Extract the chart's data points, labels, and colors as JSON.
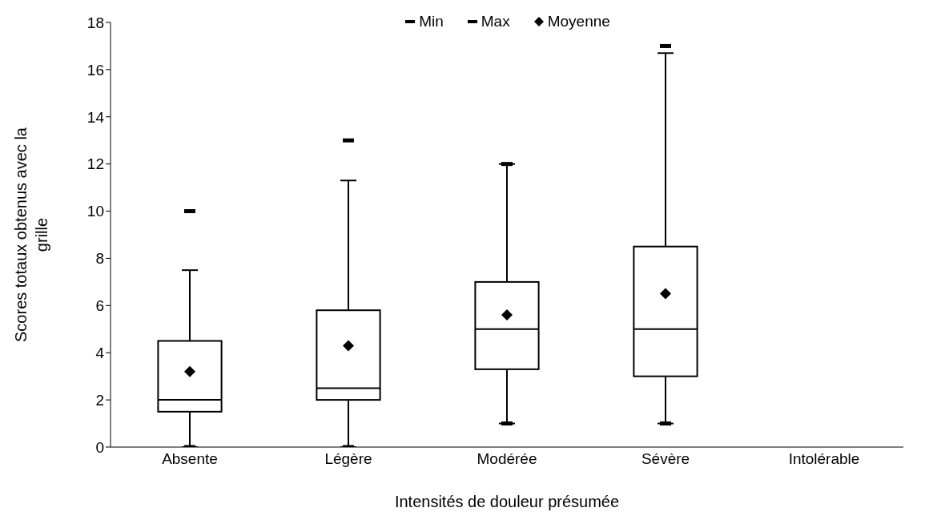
{
  "chart_data": {
    "type": "box",
    "xlabel": "Intensités de douleur présumée",
    "ylabel": "Scores totaux obtenus avec la grille",
    "categories": [
      "Absente",
      "Légère",
      "Modérée",
      "Sévère",
      "Intolérable"
    ],
    "boxes": [
      {
        "low": 0,
        "q1": 1.5,
        "median": 2,
        "q3": 4.5,
        "high": 7.5
      },
      {
        "low": 0,
        "q1": 2,
        "median": 2.5,
        "q3": 5.8,
        "high": 11.3
      },
      {
        "low": 1,
        "q1": 3.3,
        "median": 5,
        "q3": 7,
        "high": 12
      },
      {
        "low": 1,
        "q1": 3,
        "median": 5,
        "q3": 8.5,
        "high": 16.7
      },
      null
    ],
    "series": [
      {
        "name": "Min",
        "type": "scatter",
        "color": "#000000",
        "marker": "square",
        "x": [
          "Absente",
          "Légère",
          "Modérée",
          "Sévère"
        ],
        "values": [
          0,
          0,
          1,
          1
        ]
      },
      {
        "name": "Max",
        "type": "scatter",
        "color": "#000000",
        "marker": "square",
        "x": [
          "Absente",
          "Légère",
          "Modérée",
          "Sévère"
        ],
        "values": [
          10,
          13,
          12,
          17
        ]
      },
      {
        "name": "Moyenne",
        "type": "scatter",
        "color": "#000000",
        "marker": "diamond",
        "x": [
          "Absente",
          "Légère",
          "Modérée",
          "Sévère"
        ],
        "values": [
          3.2,
          4.3,
          5.6,
          6.5
        ]
      }
    ],
    "ylim": [
      0,
      18
    ],
    "yticks": [
      0,
      2,
      4,
      6,
      8,
      10,
      12,
      14,
      16,
      18
    ],
    "legend": "top",
    "grid": false
  }
}
